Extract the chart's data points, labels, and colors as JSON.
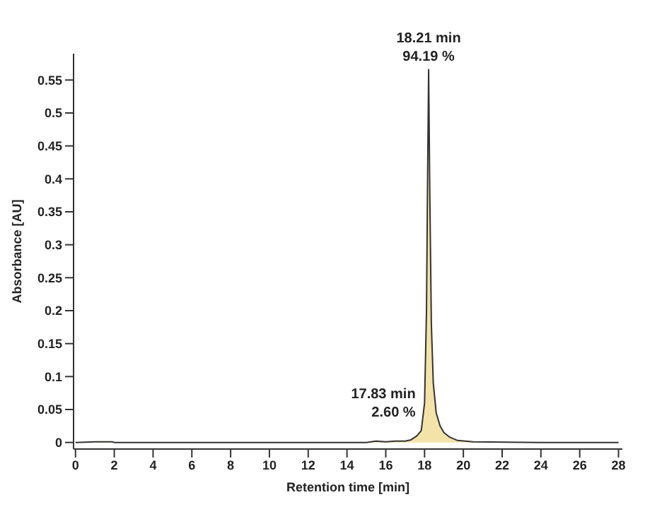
{
  "chart_data": {
    "type": "area",
    "xlabel": "Retention time [min]",
    "ylabel": "Absorbance [AU]",
    "x": [
      0,
      1,
      1.9,
      2,
      4,
      8,
      12,
      15,
      15.5,
      16,
      16.5,
      17,
      17.3,
      17.6,
      17.83,
      18,
      18.1,
      18.15,
      18.21,
      18.27,
      18.35,
      18.45,
      18.6,
      18.8,
      19,
      19.3,
      19.7,
      20.5,
      24,
      28
    ],
    "series": [
      {
        "color": "#f3e3a8",
        "values": [
          0,
          0.001,
          0.001,
          0,
          0,
          0,
          0,
          0,
          0.002,
          0.001,
          0.002,
          0.002,
          0.004,
          0.01,
          0.018,
          0.06,
          0.2,
          0.38,
          0.566,
          0.38,
          0.18,
          0.09,
          0.045,
          0.025,
          0.015,
          0.008,
          0.003,
          0.001,
          0,
          0
        ]
      }
    ],
    "xlim": [
      -0.1,
      28.2
    ],
    "xticks": [
      0,
      2,
      4,
      6,
      8,
      10,
      12,
      14,
      16,
      18,
      20,
      22,
      24,
      26,
      28
    ],
    "ylim": [
      -0.01,
      0.59
    ],
    "yticks": [
      0,
      0.05,
      0.1,
      0.15,
      0.2,
      0.25,
      0.3,
      0.35,
      0.4,
      0.45,
      0.5,
      0.55
    ],
    "grid": false,
    "legend": false,
    "annotations": [
      {
        "text": "18.21 min\n94.19 %",
        "x": 18.21,
        "y": 0.566
      },
      {
        "text": "17.83 min\n2.60 %",
        "x": 17.83,
        "y": 0.018
      }
    ]
  }
}
